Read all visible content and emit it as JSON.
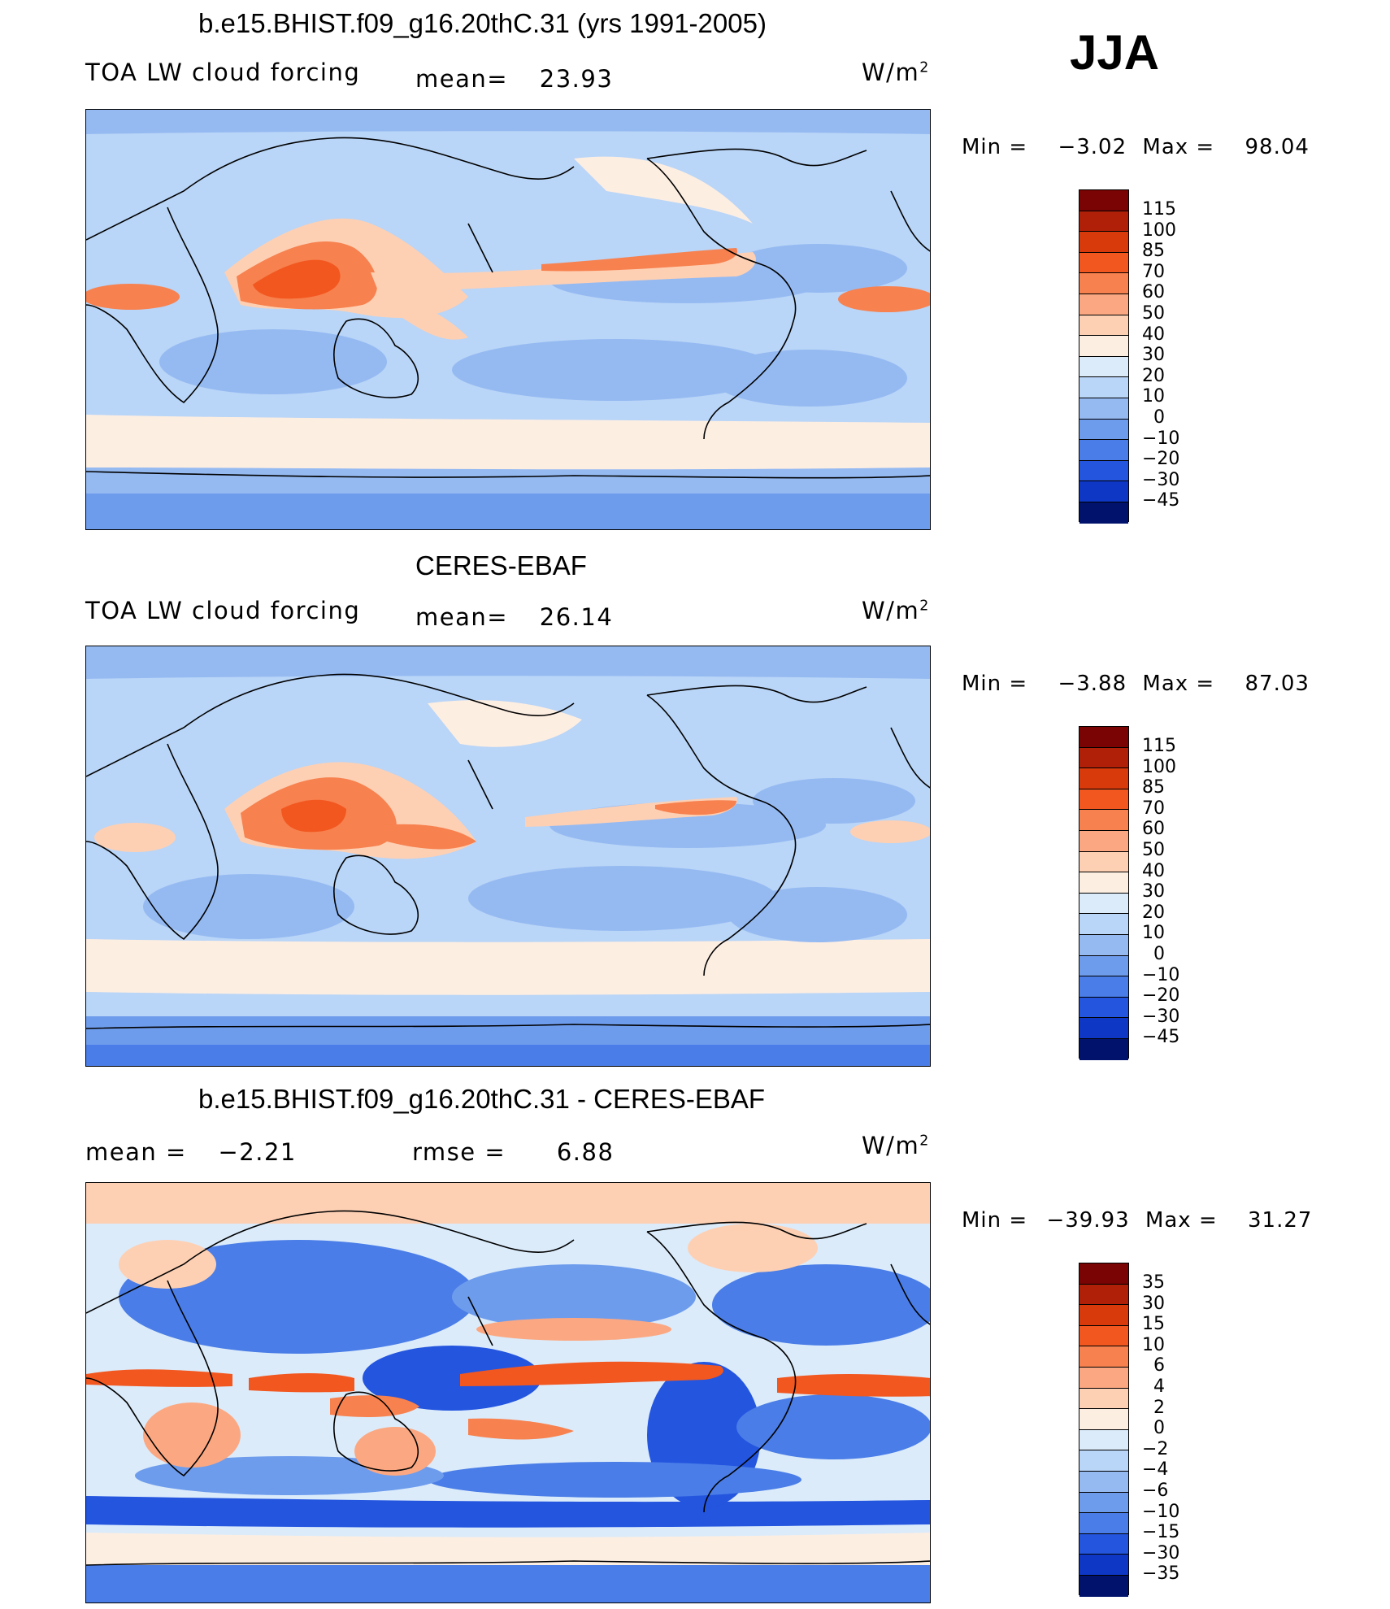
{
  "season": "JJA",
  "panels": [
    {
      "title": "b.e15.BHIST.f09_g16.20thC.31 (yrs 1991-2005)",
      "left_label": "TOA LW cloud forcing",
      "stat_label": "mean=",
      "stat_value": "23.93",
      "units": "W/m",
      "units_sup": "2",
      "min_label": "Min =",
      "min_value": "−3.02",
      "max_label": "Max =",
      "max_value": "98.04",
      "levels": [
        "115",
        "100",
        "85",
        "70",
        "60",
        "50",
        "40",
        "30",
        "20",
        "10",
        "0",
        "−10",
        "−20",
        "−30",
        "−45"
      ]
    },
    {
      "title": "CERES-EBAF",
      "left_label": "TOA LW cloud forcing",
      "stat_label": "mean=",
      "stat_value": "26.14",
      "units": "W/m",
      "units_sup": "2",
      "min_label": "Min =",
      "min_value": "−3.88",
      "max_label": "Max =",
      "max_value": "87.03",
      "levels": [
        "115",
        "100",
        "85",
        "70",
        "60",
        "50",
        "40",
        "30",
        "20",
        "10",
        "0",
        "−10",
        "−20",
        "−30",
        "−45"
      ]
    },
    {
      "title": "b.e15.BHIST.f09_g16.20thC.31 - CERES-EBAF",
      "left_label": "mean =",
      "left_value": "−2.21",
      "stat_label": "rmse =",
      "stat_value": "6.88",
      "units": "W/m",
      "units_sup": "2",
      "min_label": "Min =",
      "min_value": "−39.93",
      "max_label": "Max =",
      "max_value": "31.27",
      "levels": [
        "35",
        "30",
        "15",
        "10",
        "6",
        "4",
        "2",
        "0",
        "−2",
        "−4",
        "−6",
        "−10",
        "−15",
        "−30",
        "−35"
      ]
    }
  ],
  "colorbar_colors": [
    "#7a0403",
    "#b01f08",
    "#d83a0c",
    "#f2571f",
    "#f7814f",
    "#fba882",
    "#fdd0b4",
    "#fdeee2",
    "#dbebfa",
    "#b9d5f7",
    "#95baf2",
    "#6e9ced",
    "#4a7de7",
    "#2355df",
    "#0e37c6",
    "#052196",
    "#00126b"
  ],
  "legend_note": "colorbar colors listed top to bottom"
}
